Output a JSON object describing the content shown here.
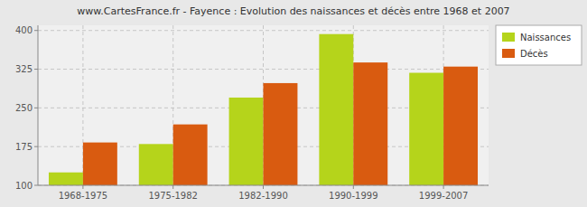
{
  "chart_data": {
    "type": "bar",
    "title": "www.CartesFrance.fr - Fayence : Evolution des naissances et décès entre 1968 et 2007",
    "categories": [
      "1968-1975",
      "1975-1982",
      "1982-1990",
      "1990-1999",
      "1999-2007"
    ],
    "series": [
      {
        "name": "Naissances",
        "color": "#b5d41b",
        "values": [
          125,
          180,
          270,
          393,
          318
        ]
      },
      {
        "name": "Décès",
        "color": "#d95b10",
        "values": [
          183,
          218,
          298,
          338,
          330
        ]
      }
    ],
    "ylim": [
      100,
      410
    ],
    "yticks": [
      100,
      175,
      250,
      325,
      400
    ],
    "grid": true,
    "legend": "upper right"
  }
}
